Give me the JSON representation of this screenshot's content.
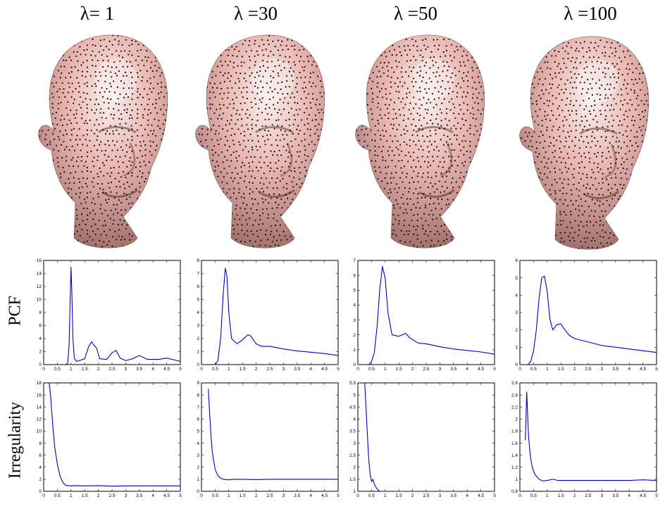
{
  "columns": [
    {
      "title": "λ= 1"
    },
    {
      "title": "λ =30"
    },
    {
      "title": "λ =50"
    },
    {
      "title": "λ =100"
    }
  ],
  "row_labels": {
    "pcf": "PCF",
    "irregularity": "Irregularity"
  },
  "colors": {
    "line": "#0000cc",
    "skin": "#e9b4ae",
    "skin_shadow": "#9a6a66",
    "dots": "#111111"
  },
  "chart_data": [
    {
      "type": "line",
      "row": "PCF",
      "column": "λ= 1",
      "xlim": [
        0,
        5
      ],
      "ylim": [
        0,
        16
      ],
      "xticks": [
        0,
        0.5,
        1,
        1.5,
        2,
        2.5,
        3,
        3.5,
        4,
        4.5,
        5
      ],
      "yticks": [
        0,
        2,
        4,
        6,
        8,
        10,
        12,
        14,
        16
      ],
      "x": [
        0.8,
        0.88,
        0.93,
        0.97,
        1.0,
        1.03,
        1.07,
        1.12,
        1.2,
        1.3,
        1.5,
        1.65,
        1.75,
        1.85,
        1.93,
        2.05,
        2.3,
        2.5,
        2.65,
        2.8,
        3.0,
        3.25,
        3.5,
        3.8,
        4.2,
        4.5,
        4.8,
        5.0
      ],
      "y": [
        0,
        0.2,
        3.0,
        10.0,
        15.0,
        11.0,
        4.0,
        1.0,
        0.5,
        0.6,
        0.9,
        2.8,
        3.5,
        2.9,
        2.6,
        0.9,
        0.8,
        1.8,
        2.2,
        1.0,
        0.6,
        0.9,
        1.4,
        0.8,
        0.8,
        1.0,
        0.7,
        0.5
      ]
    },
    {
      "type": "line",
      "row": "PCF",
      "column": "λ =30",
      "xlim": [
        0,
        5
      ],
      "ylim": [
        0,
        8
      ],
      "xticks": [
        0,
        0.5,
        1,
        1.5,
        2,
        2.5,
        3,
        3.5,
        4,
        4.5,
        5
      ],
      "yticks": [
        0,
        1,
        2,
        3,
        4,
        5,
        6,
        7,
        8
      ],
      "x": [
        0.5,
        0.6,
        0.7,
        0.8,
        0.87,
        0.93,
        1.0,
        1.1,
        1.3,
        1.5,
        1.7,
        1.8,
        2.0,
        2.2,
        2.5,
        3.0,
        3.5,
        4.0,
        4.5,
        5.0
      ],
      "y": [
        0,
        0.3,
        2.0,
        5.5,
        7.4,
        6.8,
        4.0,
        2.0,
        1.6,
        1.9,
        2.3,
        2.2,
        1.6,
        1.4,
        1.4,
        1.2,
        1.05,
        0.95,
        0.85,
        0.7
      ]
    },
    {
      "type": "line",
      "row": "PCF",
      "column": "λ =50",
      "xlim": [
        0,
        5
      ],
      "ylim": [
        0,
        7
      ],
      "xticks": [
        0,
        0.5,
        1,
        1.5,
        2,
        2.5,
        3,
        3.5,
        4,
        4.5,
        5
      ],
      "yticks": [
        0,
        1,
        2,
        3,
        4,
        5,
        6,
        7
      ],
      "x": [
        0.4,
        0.5,
        0.6,
        0.7,
        0.8,
        0.9,
        1.0,
        1.1,
        1.25,
        1.5,
        1.75,
        1.9,
        2.2,
        2.5,
        3.0,
        3.5,
        4.0,
        4.5,
        5.0
      ],
      "y": [
        0,
        0.2,
        0.8,
        2.5,
        5.0,
        6.6,
        5.8,
        3.5,
        2.0,
        1.9,
        2.1,
        1.8,
        1.45,
        1.4,
        1.2,
        1.05,
        0.95,
        0.85,
        0.7
      ]
    },
    {
      "type": "line",
      "row": "PCF",
      "column": "λ =100",
      "xlim": [
        0,
        5
      ],
      "ylim": [
        0,
        6
      ],
      "xticks": [
        0,
        0.5,
        1,
        1.5,
        2,
        2.5,
        3,
        3.5,
        4,
        4.5,
        5
      ],
      "yticks": [
        0,
        1,
        2,
        3,
        4,
        5,
        6
      ],
      "x": [
        0.3,
        0.4,
        0.5,
        0.6,
        0.7,
        0.8,
        0.9,
        1.0,
        1.1,
        1.2,
        1.35,
        1.5,
        1.6,
        1.8,
        2.0,
        2.5,
        3.0,
        3.5,
        4.0,
        4.5,
        5.0
      ],
      "y": [
        0,
        0.2,
        0.8,
        2.0,
        3.8,
        5.0,
        5.1,
        4.2,
        2.6,
        2.0,
        2.3,
        2.35,
        2.1,
        1.7,
        1.5,
        1.3,
        1.1,
        1.0,
        0.9,
        0.8,
        0.7
      ]
    },
    {
      "type": "line",
      "row": "Irregularity",
      "column": "λ= 1",
      "xlim": [
        0,
        5
      ],
      "ylim": [
        0,
        18
      ],
      "xticks": [
        0,
        0.5,
        1,
        1.5,
        2,
        2.5,
        3,
        3.5,
        4,
        4.5,
        5
      ],
      "yticks": [
        0,
        2,
        4,
        6,
        8,
        10,
        12,
        14,
        16,
        18
      ],
      "x": [
        0.2,
        0.25,
        0.3,
        0.35,
        0.4,
        0.5,
        0.6,
        0.7,
        0.8,
        1.0,
        1.2,
        1.5,
        2.0,
        2.5,
        3.0,
        3.5,
        4.0,
        4.5,
        5.0
      ],
      "y": [
        18.0,
        16.0,
        13.0,
        10.0,
        7.5,
        4.5,
        2.5,
        1.5,
        1.0,
        0.9,
        0.95,
        0.9,
        0.95,
        0.85,
        0.9,
        0.9,
        0.9,
        0.9,
        0.9
      ]
    },
    {
      "type": "line",
      "row": "Irregularity",
      "column": "λ =30",
      "xlim": [
        0,
        5
      ],
      "ylim": [
        0,
        9
      ],
      "xticks": [
        0,
        0.5,
        1,
        1.5,
        2,
        2.5,
        3,
        3.5,
        4,
        4.5,
        5
      ],
      "yticks": [
        0,
        1,
        2,
        3,
        4,
        5,
        6,
        7,
        8,
        9
      ],
      "x": [
        0.25,
        0.3,
        0.35,
        0.4,
        0.5,
        0.6,
        0.7,
        0.8,
        1.0,
        1.2,
        1.5,
        2.0,
        2.5,
        3.0,
        3.5,
        4.0,
        4.5,
        5.0
      ],
      "y": [
        8.5,
        6.5,
        4.5,
        3.2,
        1.8,
        1.3,
        1.1,
        1.0,
        0.95,
        1.0,
        1.0,
        0.97,
        1.0,
        1.0,
        1.0,
        1.0,
        1.0,
        1.0
      ]
    },
    {
      "type": "line",
      "row": "Irregularity",
      "column": "λ =50",
      "xlim": [
        0,
        5
      ],
      "ylim": [
        1,
        5.5
      ],
      "xticks": [
        0,
        0.5,
        1,
        1.5,
        2,
        2.5,
        3,
        3.5,
        4,
        4.5,
        5
      ],
      "yticks": [
        1,
        1.5,
        2,
        2.5,
        3,
        3.5,
        4,
        4.5,
        5,
        5.5
      ],
      "x": [
        0.25,
        0.3,
        0.35,
        0.4,
        0.45,
        0.5,
        0.55,
        0.6,
        0.7,
        0.8,
        1.0,
        1.2,
        1.5,
        2.0,
        3.0,
        4.0,
        5.0
      ],
      "y": [
        5.5,
        4.5,
        3.3,
        2.3,
        1.7,
        1.4,
        1.5,
        1.3,
        1.1,
        1.0,
        0.97,
        1.0,
        1.0,
        1.0,
        1.0,
        1.0,
        1.0
      ]
    },
    {
      "type": "line",
      "row": "Irregularity",
      "column": "λ =100",
      "xlim": [
        0,
        5
      ],
      "ylim": [
        0.8,
        2.6
      ],
      "xticks": [
        0,
        0.5,
        1,
        1.5,
        2,
        2.5,
        3,
        3.5,
        4,
        4.5,
        5
      ],
      "yticks": [
        0.8,
        1,
        1.2,
        1.4,
        1.6,
        1.8,
        2,
        2.2,
        2.4,
        2.6
      ],
      "x": [
        0.2,
        0.25,
        0.28,
        0.32,
        0.38,
        0.45,
        0.55,
        0.7,
        0.85,
        1.0,
        1.2,
        1.4,
        1.7,
        2.0,
        2.5,
        3.0,
        3.5,
        4.0,
        4.5,
        5.0
      ],
      "y": [
        1.65,
        2.45,
        2.1,
        1.7,
        1.4,
        1.2,
        1.08,
        1.0,
        0.97,
        0.98,
        1.0,
        0.98,
        0.98,
        0.98,
        0.98,
        0.98,
        0.98,
        0.98,
        0.99,
        0.98
      ]
    }
  ]
}
